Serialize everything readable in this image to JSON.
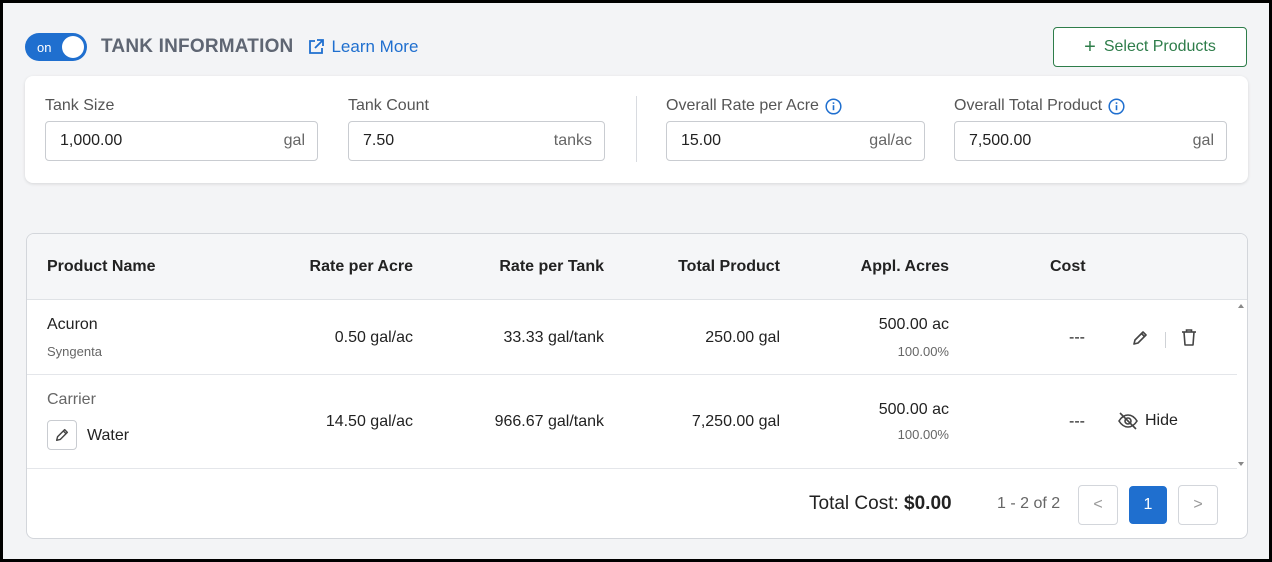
{
  "header": {
    "toggle_label": "on",
    "toggle_state": true,
    "title": "TANK INFORMATION",
    "learn_more": "Learn More",
    "select_products": "Select Products",
    "accent_color": "#1f6fcf",
    "select_color": "#2e7d4a"
  },
  "tank": {
    "tank_size": {
      "label": "Tank Size",
      "value": "1,000.00",
      "unit": "gal"
    },
    "tank_count": {
      "label": "Tank Count",
      "value": "7.50",
      "unit": "tanks"
    },
    "overall_rate": {
      "label": "Overall Rate per Acre",
      "value": "15.00",
      "unit": "gal/ac",
      "icon": "info-icon"
    },
    "overall_total": {
      "label": "Overall Total Product",
      "value": "7,500.00",
      "unit": "gal",
      "icon": "info-icon"
    }
  },
  "table": {
    "columns": [
      "Product Name",
      "Rate per Acre",
      "Rate per Tank",
      "Total Product",
      "Appl. Acres",
      "Cost"
    ],
    "rows": [
      {
        "name": "Acuron",
        "manufacturer": "Syngenta",
        "rate_per_acre": "0.50 gal/ac",
        "rate_per_tank": "33.33 gal/tank",
        "total_product": "250.00 gal",
        "appl_acres": "500.00 ac",
        "appl_pct": "100.00%",
        "cost": "---"
      },
      {
        "label": "Carrier",
        "name": "Water",
        "rate_per_acre": "14.50 gal/ac",
        "rate_per_tank": "966.67 gal/tank",
        "total_product": "7,250.00 gal",
        "appl_acres": "500.00 ac",
        "appl_pct": "100.00%",
        "cost": "---",
        "hide_label": "Hide"
      }
    ]
  },
  "footer": {
    "total_cost_label": "Total Cost:",
    "total_cost_value": "$0.00",
    "pager_info": "1 - 2 of 2",
    "prev": "<",
    "page": "1",
    "next": ">"
  }
}
